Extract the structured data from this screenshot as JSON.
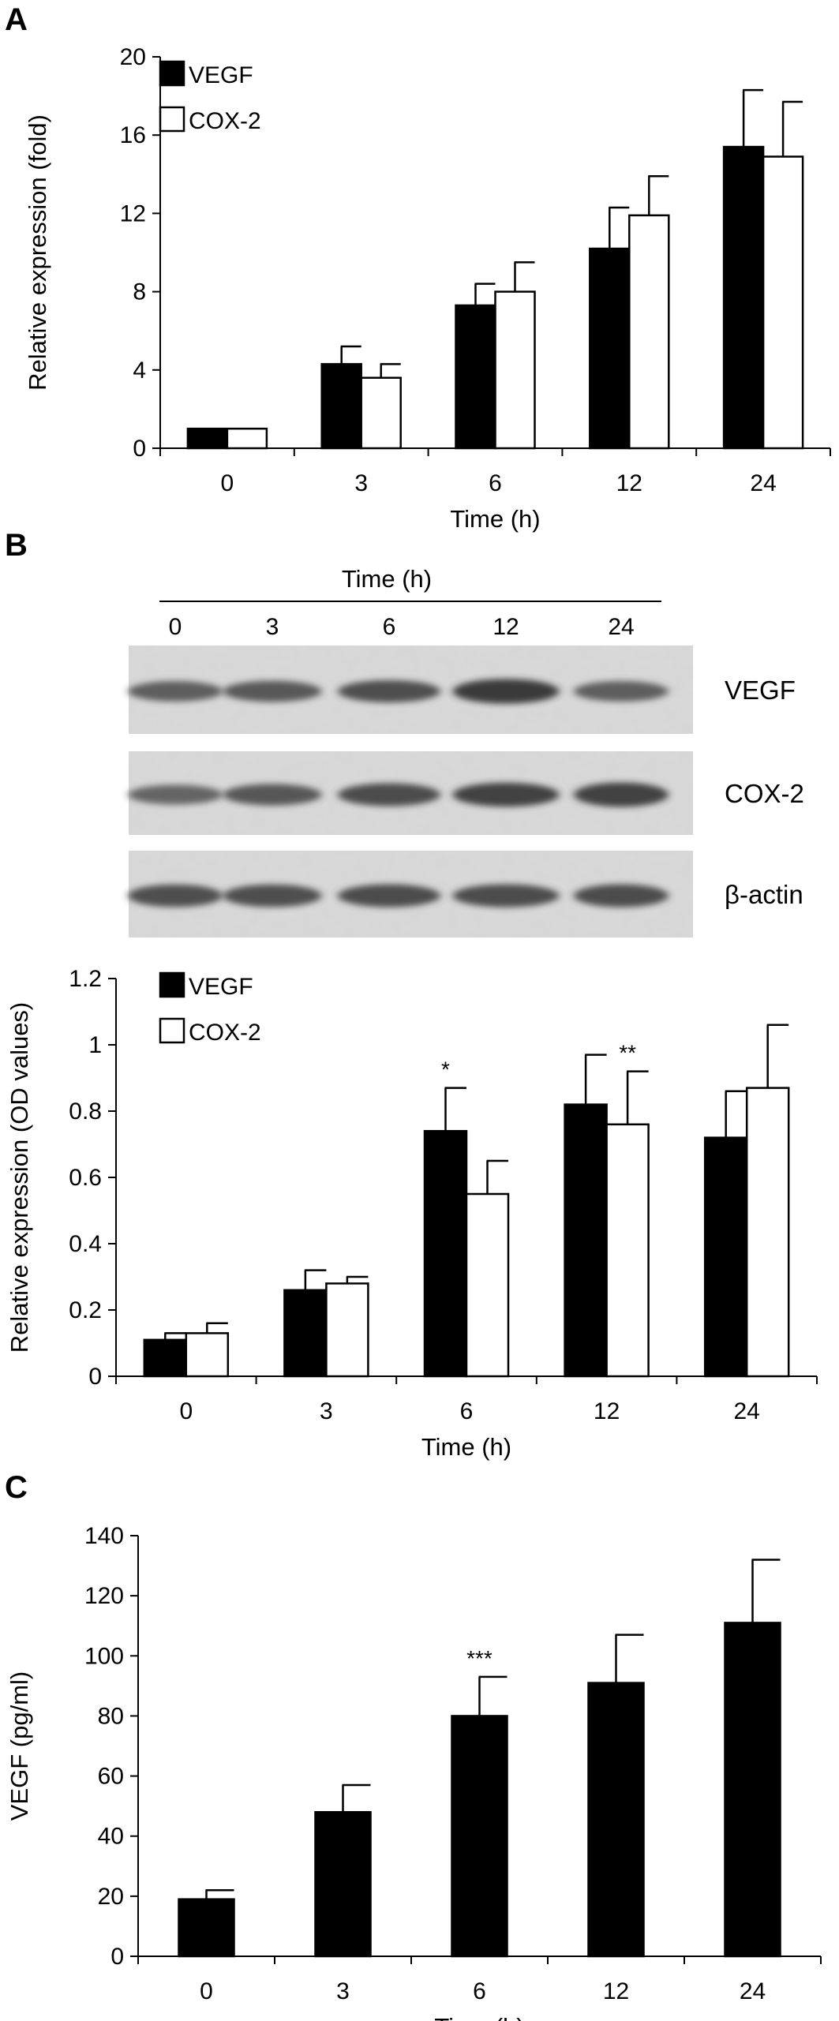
{
  "panels": {
    "a": {
      "letter": "A"
    },
    "b": {
      "letter": "B"
    },
    "c": {
      "letter": "C"
    }
  },
  "chart_data": [
    {
      "type": "bar",
      "panel": "A",
      "categories": [
        "0",
        "3",
        "6",
        "12",
        "24"
      ],
      "xlabel": "Time (h)",
      "ylabel": "Relative expression (fold)",
      "ylim": [
        0,
        20
      ],
      "yticks": [
        "0",
        "4",
        "8",
        "12",
        "16",
        "20"
      ],
      "legend_position": "top-left",
      "grid": false,
      "series": [
        {
          "name": "VEGF",
          "color": "#000000",
          "values": [
            1.0,
            4.3,
            7.3,
            10.2,
            15.4
          ],
          "errors": [
            0.0,
            0.9,
            1.1,
            2.1,
            2.9
          ]
        },
        {
          "name": "COX-2",
          "color": "#ffffff",
          "values": [
            1.0,
            3.6,
            8.0,
            11.9,
            14.9
          ],
          "errors": [
            0.0,
            0.7,
            1.5,
            2.0,
            2.8
          ]
        }
      ],
      "annotations": []
    },
    {
      "type": "bar",
      "panel": "B",
      "categories": [
        "0",
        "3",
        "6",
        "12",
        "24"
      ],
      "xlabel": "Time (h)",
      "ylabel": "Relative expression (OD values)",
      "ylim": [
        0,
        1.2
      ],
      "yticks": [
        "0",
        "0.2",
        "0.4",
        "0.6",
        "0.8",
        "1",
        "1.2"
      ],
      "legend_position": "top-left",
      "grid": false,
      "series": [
        {
          "name": "VEGF",
          "color": "#000000",
          "values": [
            0.11,
            0.26,
            0.74,
            0.82,
            0.72
          ],
          "errors": [
            0.02,
            0.06,
            0.13,
            0.15,
            0.14
          ]
        },
        {
          "name": "COX-2",
          "color": "#ffffff",
          "values": [
            0.13,
            0.28,
            0.55,
            0.76,
            0.87
          ],
          "errors": [
            0.03,
            0.02,
            0.1,
            0.16,
            0.19
          ]
        }
      ],
      "annotations": [
        {
          "category": "6",
          "series": "VEGF",
          "text": "*"
        },
        {
          "category": "12",
          "series": "COX-2",
          "text": "**"
        }
      ]
    },
    {
      "type": "bar",
      "panel": "C",
      "categories": [
        "0",
        "3",
        "6",
        "12",
        "24"
      ],
      "xlabel": "Time (h)",
      "ylabel": "VEGF (pg/ml)",
      "ylim": [
        0,
        140
      ],
      "yticks": [
        "0",
        "20",
        "40",
        "60",
        "80",
        "100",
        "120",
        "140"
      ],
      "grid": false,
      "series": [
        {
          "name": "",
          "color": "#000000",
          "values": [
            19,
            48,
            80,
            91,
            111
          ],
          "errors": [
            3,
            9,
            13,
            16,
            21
          ]
        }
      ],
      "annotations": [
        {
          "category": "6",
          "series": "",
          "text": "***"
        }
      ]
    }
  ],
  "blot": {
    "header": "Time (h)",
    "lanes": [
      "0",
      "3",
      "6",
      "12",
      "24"
    ],
    "rows": [
      {
        "label": "VEGF",
        "intensities": [
          0.55,
          0.6,
          0.68,
          0.85,
          0.55
        ]
      },
      {
        "label": "COX-2",
        "intensities": [
          0.5,
          0.62,
          0.72,
          0.8,
          0.82
        ]
      },
      {
        "label": "β-actin",
        "intensities": [
          0.7,
          0.7,
          0.72,
          0.72,
          0.72
        ]
      }
    ]
  }
}
